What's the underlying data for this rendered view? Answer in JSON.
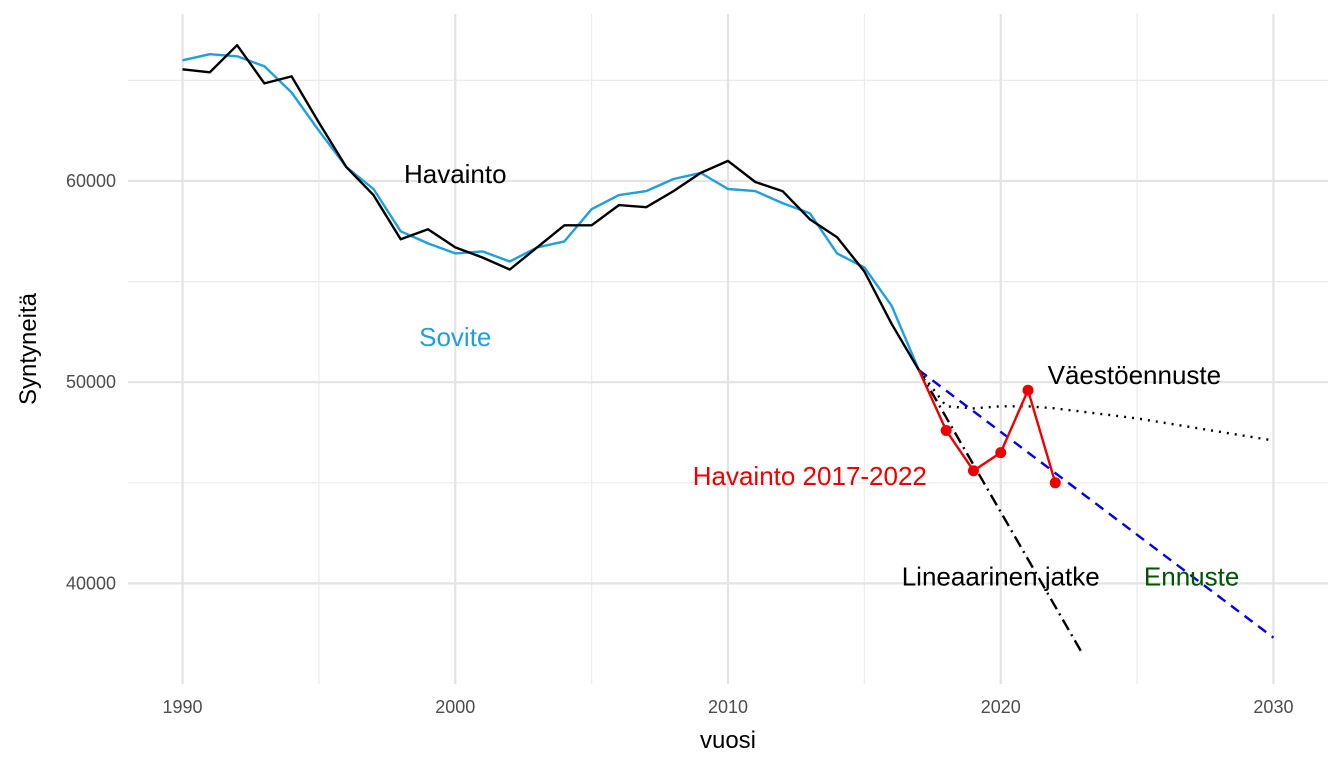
{
  "chart_data": {
    "type": "line",
    "title": "",
    "xlabel": "vuosi",
    "ylabel": "Syntyneitä",
    "xlim": [
      1988,
      2032
    ],
    "ylim": [
      35000,
      68300
    ],
    "x_ticks": [
      1990,
      2000,
      2010,
      2020,
      2030
    ],
    "x_tick_labels": [
      "1990",
      "2000",
      "2010",
      "2020",
      "2030"
    ],
    "y_ticks": [
      40000,
      50000,
      60000
    ],
    "y_tick_labels": [
      "40000",
      "50000",
      "60000"
    ],
    "grid": true,
    "legend": "none",
    "series": [
      {
        "key": "sovite",
        "color": "#1f9fe0",
        "dash": "",
        "x": [
          1990,
          1991,
          1992,
          1993,
          1994,
          1995,
          1996,
          1997,
          1998,
          1999,
          2000,
          2001,
          2002,
          2003,
          2004,
          2005,
          2006,
          2007,
          2008,
          2009,
          2010,
          2011,
          2012,
          2013,
          2014,
          2015,
          2016,
          2017
        ],
        "y": [
          66000,
          66300,
          66200,
          65700,
          64400,
          62500,
          60700,
          59600,
          57500,
          56900,
          56400,
          56500,
          56000,
          56700,
          57000,
          58600,
          59300,
          59500,
          60100,
          60400,
          59600,
          59500,
          58900,
          58400,
          56400,
          55700,
          53800,
          50600
        ]
      },
      {
        "key": "havainto",
        "color": "#000000",
        "dash": "",
        "x": [
          1990,
          1991,
          1992,
          1993,
          1994,
          1995,
          1996,
          1997,
          1998,
          1999,
          2000,
          2001,
          2002,
          2003,
          2004,
          2005,
          2006,
          2007,
          2008,
          2009,
          2010,
          2011,
          2012,
          2013,
          2014,
          2015,
          2016,
          2017
        ],
        "y": [
          65550,
          65400,
          66750,
          64850,
          65200,
          62900,
          60700,
          59300,
          57100,
          57600,
          56700,
          56200,
          55600,
          56700,
          57800,
          57800,
          58800,
          58700,
          59500,
          60400,
          61000,
          59950,
          59500,
          58100,
          57200,
          55500,
          52900,
          50600
        ]
      },
      {
        "key": "ennuste",
        "color": "#0000ee",
        "dash": "10,7",
        "x": [
          2017,
          2030
        ],
        "y": [
          50600,
          37300
        ]
      },
      {
        "key": "vaestoennuste",
        "color": "#000000",
        "dash": "2,6",
        "x": [
          2017,
          2018,
          2019,
          2020,
          2021,
          2022,
          2025,
          2030
        ],
        "y": [
          50600,
          48800,
          48700,
          48800,
          48800,
          48700,
          48200,
          47100
        ]
      },
      {
        "key": "lineaarinen",
        "color": "#000000",
        "dash": "12,5,2,5",
        "x": [
          2017,
          2023
        ],
        "y": [
          50600,
          36500
        ]
      },
      {
        "key": "havainto_2017_2022",
        "color": "#ee0000",
        "dash": "",
        "markers": true,
        "x": [
          2017,
          2018,
          2019,
          2020,
          2021,
          2022
        ],
        "y": [
          50600,
          47600,
          45600,
          46500,
          49600,
          45000
        ]
      }
    ],
    "annotations": [
      {
        "text": "Havainto",
        "color": "#000000",
        "x": 2000,
        "y": 59900,
        "anchor": "middle"
      },
      {
        "text": "Sovite",
        "color": "#1f9fe0",
        "x": 2000,
        "y": 51800,
        "anchor": "middle"
      },
      {
        "text": "Väestöennuste",
        "color": "#000000",
        "x": 2024.9,
        "y": 49900,
        "anchor": "middle"
      },
      {
        "text": "Havainto 2017-2022",
        "color": "#ee0000",
        "x": 2013,
        "y": 44900,
        "anchor": "middle"
      },
      {
        "text": "Lineaarinen jatke",
        "color": "#000000",
        "x": 2020,
        "y": 39900,
        "anchor": "middle"
      },
      {
        "text": "Ennuste",
        "color": "#005500",
        "x": 2027,
        "y": 39900,
        "anchor": "middle"
      }
    ]
  }
}
